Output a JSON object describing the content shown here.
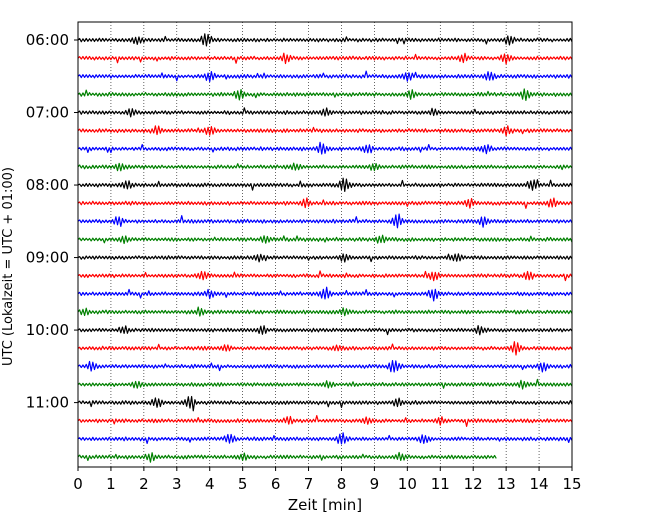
{
  "chart_data": {
    "type": "line",
    "title": "",
    "xlabel": "Zeit  [min]",
    "ylabel": "UTC (Lokalzeit = UTC + 01:00)",
    "xlim": [
      0,
      15
    ],
    "x_ticks": [
      0,
      1,
      2,
      3,
      4,
      5,
      6,
      7,
      8,
      9,
      10,
      11,
      12,
      13,
      14,
      15
    ],
    "y_tick_labels": [
      "06:00",
      "07:00",
      "08:00",
      "09:00",
      "10:00",
      "11:00"
    ],
    "grid": "vertical dotted",
    "legend": "none",
    "trace_interval_min": 15,
    "trace_colors": [
      "#000000",
      "#ff0000",
      "#0000ff",
      "#008000"
    ],
    "series": [
      {
        "start": "06:00",
        "color": "#000000",
        "end_min": 15,
        "events": [
          [
            3.9,
            1.0
          ],
          [
            1.8,
            0.6
          ],
          [
            13.1,
            0.8
          ]
        ]
      },
      {
        "start": "06:15",
        "color": "#ff0000",
        "end_min": 15,
        "events": [
          [
            6.3,
            0.7
          ],
          [
            11.7,
            0.6
          ],
          [
            13.0,
            0.7
          ]
        ]
      },
      {
        "start": "06:30",
        "color": "#0000ff",
        "end_min": 15,
        "events": [
          [
            4.0,
            0.7
          ],
          [
            10.0,
            0.6
          ],
          [
            12.5,
            0.6
          ]
        ]
      },
      {
        "start": "06:45",
        "color": "#008000",
        "end_min": 15,
        "events": [
          [
            4.9,
            0.8
          ],
          [
            10.1,
            0.6
          ],
          [
            13.6,
            0.9
          ]
        ]
      },
      {
        "start": "07:00",
        "color": "#000000",
        "end_min": 15,
        "events": [
          [
            1.6,
            0.6
          ],
          [
            7.5,
            0.6
          ],
          [
            10.8,
            0.5
          ]
        ]
      },
      {
        "start": "07:15",
        "color": "#ff0000",
        "end_min": 15,
        "events": [
          [
            2.4,
            0.7
          ],
          [
            4.0,
            0.6
          ],
          [
            13.0,
            0.7
          ]
        ]
      },
      {
        "start": "07:30",
        "color": "#0000ff",
        "end_min": 15,
        "events": [
          [
            7.4,
            1.0
          ],
          [
            8.8,
            0.8
          ],
          [
            12.4,
            0.7
          ]
        ]
      },
      {
        "start": "07:45",
        "color": "#008000",
        "end_min": 15,
        "events": [
          [
            1.3,
            0.6
          ],
          [
            6.6,
            0.5
          ],
          [
            9.0,
            0.6
          ]
        ]
      },
      {
        "start": "08:00",
        "color": "#000000",
        "end_min": 15,
        "events": [
          [
            8.1,
            1.2
          ],
          [
            1.5,
            0.7
          ],
          [
            13.8,
            0.8
          ]
        ]
      },
      {
        "start": "08:15",
        "color": "#ff0000",
        "end_min": 15,
        "events": [
          [
            6.9,
            0.7
          ],
          [
            11.9,
            0.7
          ],
          [
            14.4,
            0.8
          ]
        ]
      },
      {
        "start": "08:30",
        "color": "#0000ff",
        "end_min": 15,
        "events": [
          [
            1.2,
            0.7
          ],
          [
            9.7,
            1.0
          ],
          [
            12.3,
            0.7
          ]
        ]
      },
      {
        "start": "08:45",
        "color": "#008000",
        "end_min": 15,
        "events": [
          [
            1.4,
            0.5
          ],
          [
            5.7,
            0.5
          ],
          [
            9.2,
            0.6
          ]
        ]
      },
      {
        "start": "09:00",
        "color": "#000000",
        "end_min": 15,
        "events": [
          [
            5.5,
            0.6
          ],
          [
            8.1,
            0.6
          ],
          [
            11.5,
            0.6
          ]
        ]
      },
      {
        "start": "09:15",
        "color": "#ff0000",
        "end_min": 15,
        "events": [
          [
            3.8,
            0.7
          ],
          [
            10.8,
            0.7
          ],
          [
            13.7,
            0.6
          ]
        ]
      },
      {
        "start": "09:30",
        "color": "#0000ff",
        "end_min": 15,
        "events": [
          [
            7.5,
            1.1
          ],
          [
            10.8,
            1.0
          ],
          [
            4.0,
            0.6
          ]
        ]
      },
      {
        "start": "09:45",
        "color": "#008000",
        "end_min": 15,
        "events": [
          [
            0.2,
            0.5
          ],
          [
            3.7,
            0.6
          ],
          [
            8.1,
            0.6
          ]
        ]
      },
      {
        "start": "10:00",
        "color": "#000000",
        "end_min": 15,
        "events": [
          [
            1.4,
            0.6
          ],
          [
            5.6,
            0.6
          ],
          [
            12.2,
            0.6
          ]
        ]
      },
      {
        "start": "10:15",
        "color": "#ff0000",
        "end_min": 15,
        "events": [
          [
            13.3,
            1.0
          ],
          [
            4.5,
            0.5
          ],
          [
            7.9,
            0.5
          ]
        ]
      },
      {
        "start": "10:30",
        "color": "#0000ff",
        "end_min": 15,
        "events": [
          [
            9.6,
            1.1
          ],
          [
            0.4,
            0.8
          ],
          [
            14.1,
            0.8
          ]
        ]
      },
      {
        "start": "10:45",
        "color": "#008000",
        "end_min": 15,
        "events": [
          [
            1.8,
            0.6
          ],
          [
            7.6,
            0.5
          ],
          [
            13.5,
            0.6
          ]
        ]
      },
      {
        "start": "11:00",
        "color": "#000000",
        "end_min": 15,
        "events": [
          [
            3.4,
            1.2
          ],
          [
            2.4,
            0.8
          ],
          [
            9.7,
            0.6
          ]
        ]
      },
      {
        "start": "11:15",
        "color": "#ff0000",
        "end_min": 15,
        "events": [
          [
            6.4,
            0.5
          ],
          [
            8.8,
            0.5
          ],
          [
            11.0,
            0.6
          ]
        ]
      },
      {
        "start": "11:30",
        "color": "#0000ff",
        "end_min": 15,
        "events": [
          [
            8.0,
            1.0
          ],
          [
            10.5,
            0.8
          ],
          [
            4.6,
            0.7
          ]
        ]
      },
      {
        "start": "11:45",
        "color": "#008000",
        "end_min": 12.7,
        "events": [
          [
            2.2,
            0.6
          ],
          [
            5.0,
            0.5
          ],
          [
            9.8,
            0.6
          ]
        ]
      }
    ]
  }
}
